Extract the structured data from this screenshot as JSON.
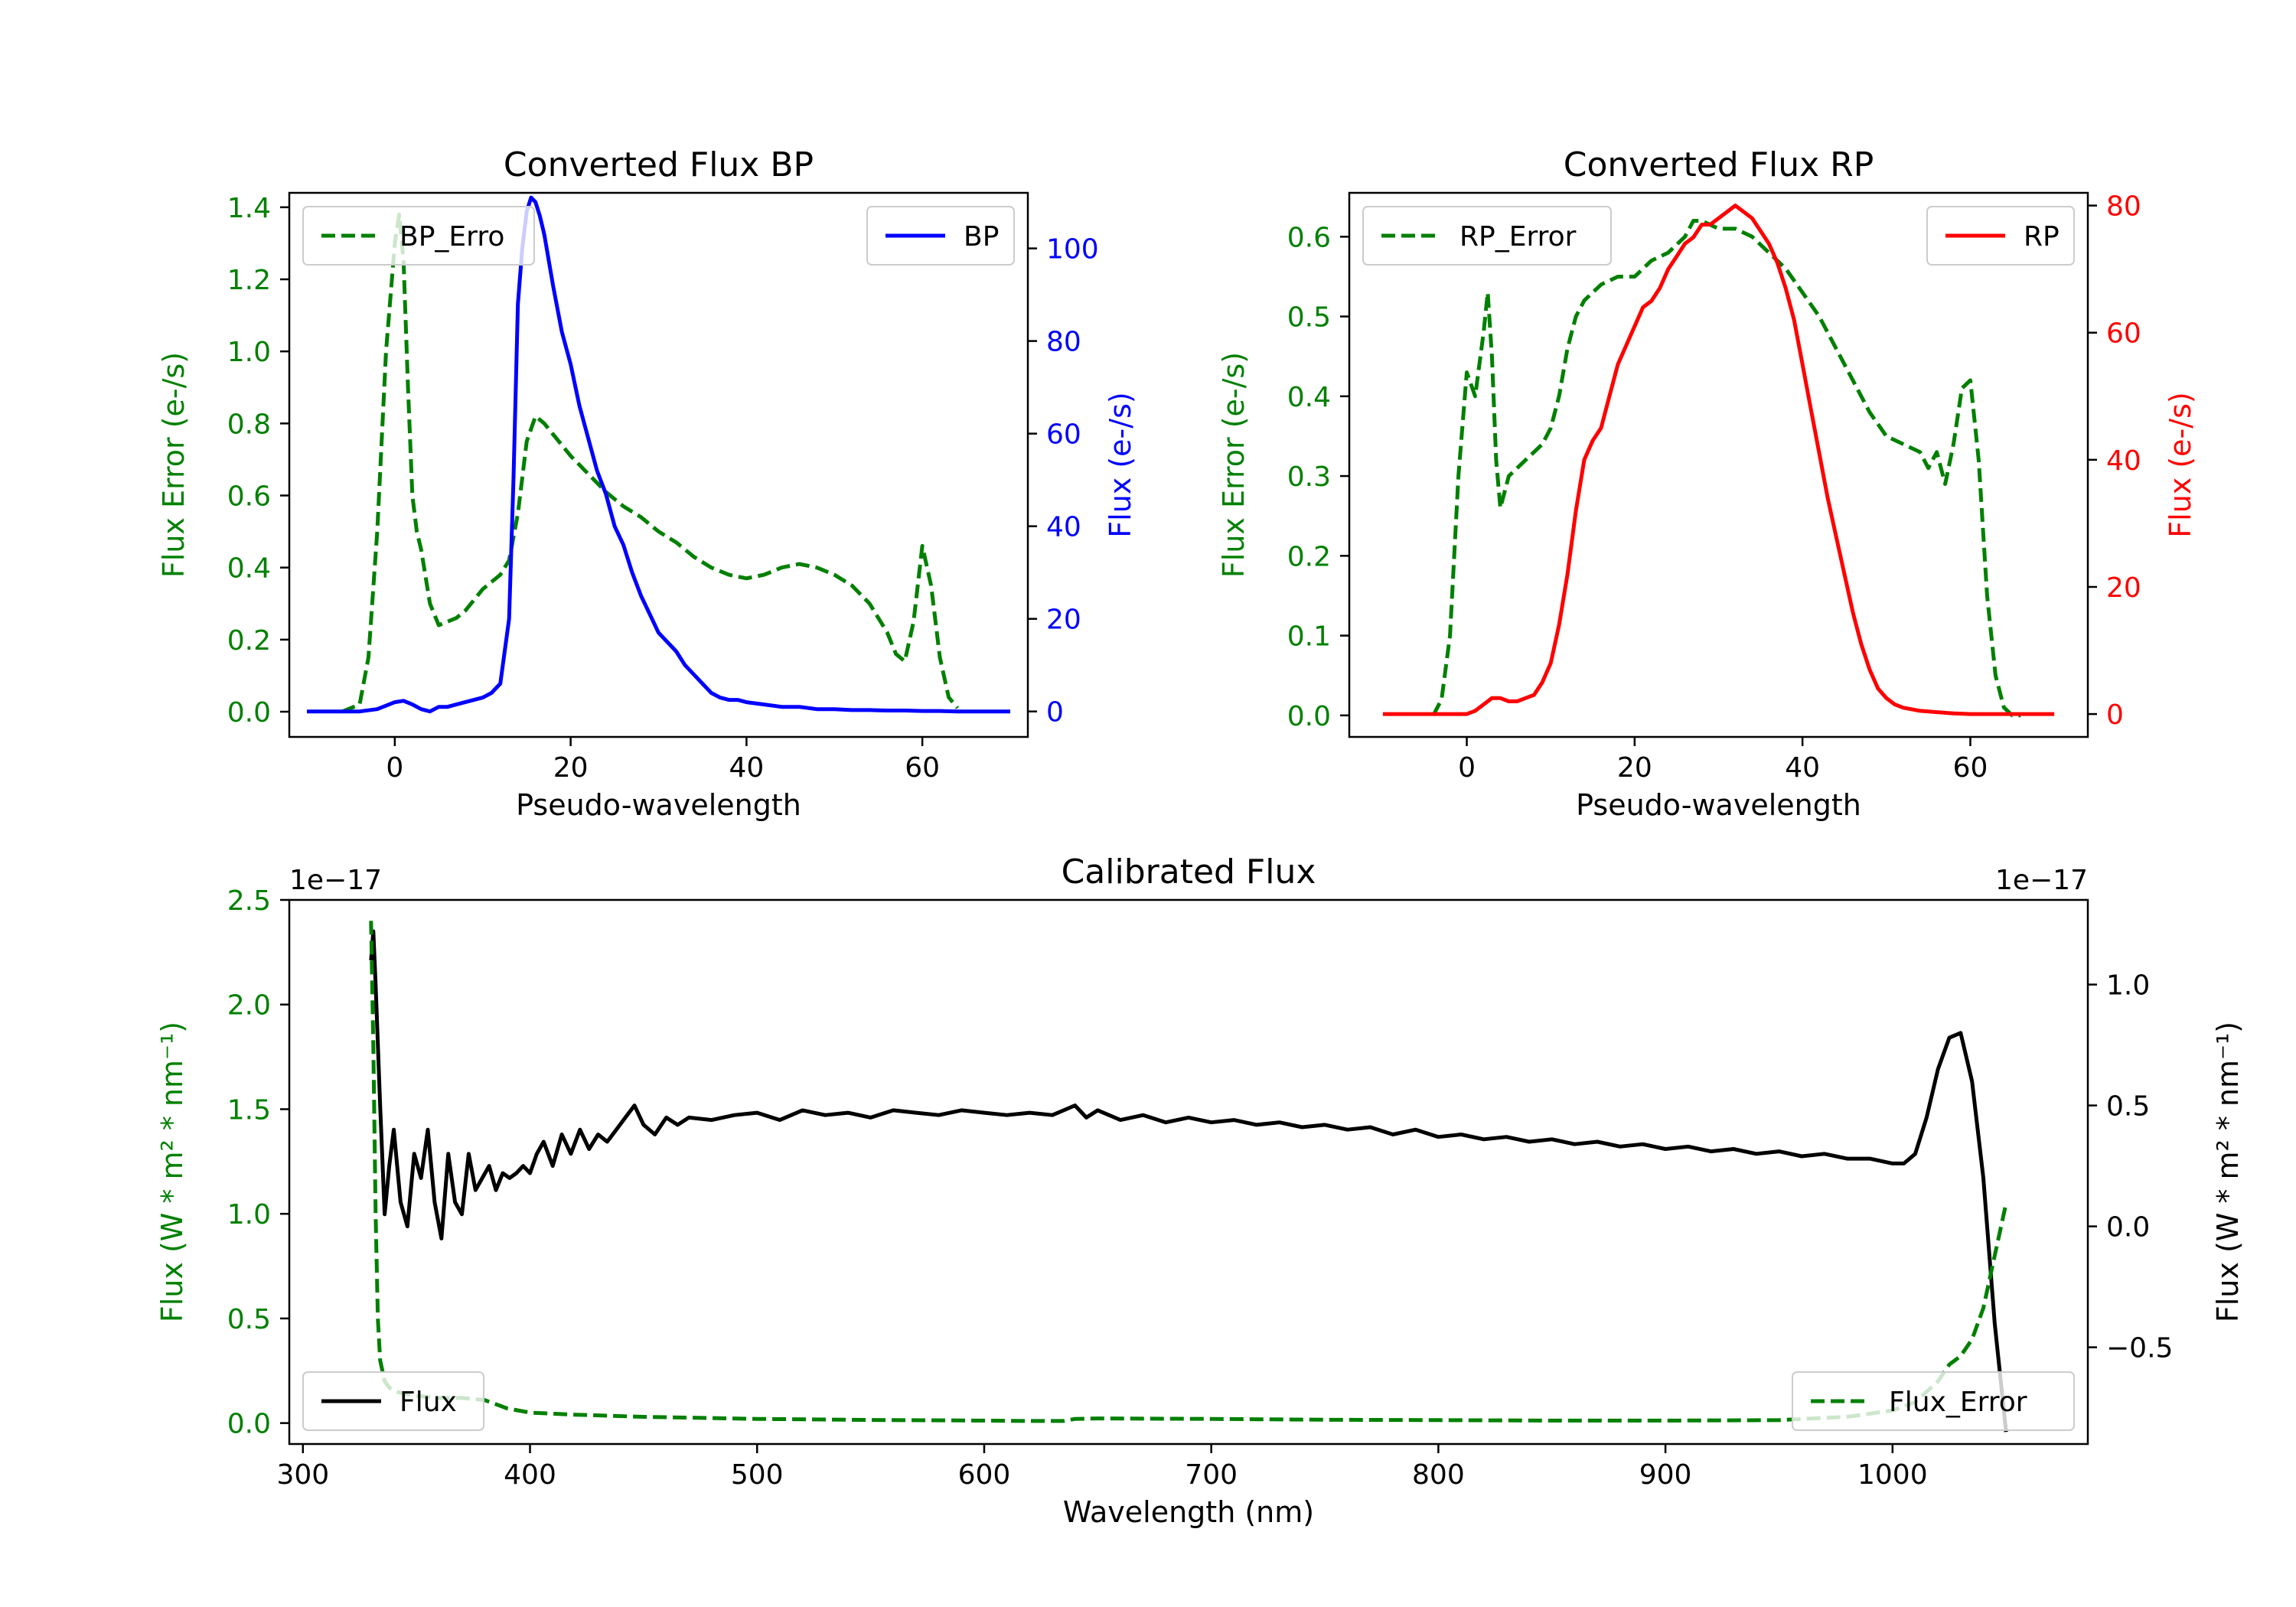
{
  "chart_data": [
    {
      "id": "bp",
      "type": "line",
      "title": "Converted Flux BP",
      "xlabel": "Pseudo-wavelength",
      "xlim": [
        -12,
        72
      ],
      "xticks": [
        0,
        20,
        40,
        60
      ],
      "xtick_labels": [
        "0",
        "20",
        "40",
        "60"
      ],
      "left_axis": {
        "label": "Flux Error (e-/s)",
        "color": "#008000",
        "lim": [
          -0.07,
          1.44
        ],
        "ticks": [
          0.0,
          0.2,
          0.4,
          0.6,
          0.8,
          1.0,
          1.2,
          1.4
        ],
        "tick_labels": [
          "0.0",
          "0.2",
          "0.4",
          "0.6",
          "0.8",
          "1.0",
          "1.2",
          "1.4"
        ]
      },
      "right_axis": {
        "label": "Flux (e-/s)",
        "color": "#0000ff",
        "lim": [
          -5.5,
          112
        ],
        "ticks": [
          0,
          20,
          40,
          60,
          80,
          100
        ],
        "tick_labels": [
          "0",
          "20",
          "40",
          "60",
          "80",
          "100"
        ]
      },
      "series": [
        {
          "name": "BP_Error",
          "axis": "left",
          "color": "#008000",
          "dashed": true,
          "legend_label": "BP_Erro",
          "x": [
            -6,
            -4,
            -3,
            -2,
            -1,
            0,
            0.5,
            1,
            1.5,
            2,
            2.5,
            3,
            4,
            5,
            6,
            7,
            8,
            9,
            10,
            11,
            12,
            13,
            14,
            15,
            16,
            17,
            18,
            19,
            20,
            22,
            24,
            26,
            28,
            30,
            32,
            34,
            36,
            38,
            40,
            42,
            44,
            46,
            48,
            50,
            52,
            54,
            56,
            57,
            58,
            59,
            60,
            61,
            62,
            63,
            64
          ],
          "y": [
            0.0,
            0.02,
            0.15,
            0.5,
            1.0,
            1.3,
            1.38,
            1.25,
            0.9,
            0.6,
            0.5,
            0.45,
            0.3,
            0.24,
            0.25,
            0.26,
            0.28,
            0.31,
            0.34,
            0.36,
            0.38,
            0.42,
            0.55,
            0.75,
            0.82,
            0.8,
            0.77,
            0.74,
            0.71,
            0.66,
            0.61,
            0.57,
            0.54,
            0.5,
            0.47,
            0.43,
            0.4,
            0.38,
            0.37,
            0.38,
            0.4,
            0.41,
            0.4,
            0.38,
            0.35,
            0.3,
            0.22,
            0.16,
            0.14,
            0.25,
            0.46,
            0.35,
            0.15,
            0.04,
            0.01
          ]
        },
        {
          "name": "BP",
          "axis": "right",
          "color": "#0000ff",
          "dashed": false,
          "legend_label": "BP",
          "x": [
            -10,
            -8,
            -4,
            -2,
            0,
            1,
            2,
            3,
            4,
            5,
            6,
            7,
            8,
            9,
            10,
            11,
            12,
            13,
            13.5,
            14,
            14.5,
            15,
            15.5,
            16,
            16.5,
            17,
            18,
            19,
            20,
            21,
            22,
            23,
            24,
            25,
            26,
            27,
            28,
            29,
            30,
            31,
            32,
            33,
            34,
            35,
            36,
            37,
            38,
            39,
            40,
            42,
            44,
            46,
            48,
            50,
            52,
            54,
            56,
            58,
            60,
            62,
            64,
            66,
            68,
            70
          ],
          "y": [
            0,
            0,
            0,
            0.5,
            2,
            2.3,
            1.5,
            0.5,
            0,
            1,
            1,
            1.5,
            2,
            2.5,
            3,
            4,
            6,
            20,
            50,
            88,
            100,
            108,
            111,
            110,
            107,
            103,
            92,
            82,
            75,
            66,
            59,
            52,
            47,
            40,
            36,
            30,
            25,
            21,
            17,
            15,
            13,
            10,
            8,
            6,
            4,
            3,
            2.5,
            2.5,
            2,
            1.5,
            1,
            1,
            0.5,
            0.5,
            0.3,
            0.3,
            0.2,
            0.2,
            0.1,
            0.1,
            0,
            0,
            0,
            0
          ]
        }
      ],
      "legends": [
        {
          "series": "BP_Error",
          "position": "upper left"
        },
        {
          "series": "BP",
          "position": "upper right"
        }
      ]
    },
    {
      "id": "rp",
      "type": "line",
      "title": "Converted Flux RP",
      "xlabel": "Pseudo-wavelength",
      "xlim": [
        -14,
        74
      ],
      "xticks": [
        0,
        20,
        40,
        60
      ],
      "xtick_labels": [
        "0",
        "20",
        "40",
        "60"
      ],
      "left_axis": {
        "label": "Flux Error (e-/s)",
        "color": "#008000",
        "lim": [
          -0.027,
          0.655
        ],
        "ticks": [
          0.0,
          0.1,
          0.2,
          0.3,
          0.4,
          0.5,
          0.6
        ],
        "tick_labels": [
          "0.0",
          "0.1",
          "0.2",
          "0.3",
          "0.4",
          "0.5",
          "0.6"
        ]
      },
      "right_axis": {
        "label": "Flux (e-/s)",
        "color": "#ff0000",
        "lim": [
          -3.6,
          82
        ],
        "ticks": [
          0,
          20,
          40,
          60,
          80
        ],
        "tick_labels": [
          "0",
          "20",
          "40",
          "60",
          "80"
        ]
      },
      "series": [
        {
          "name": "RP_Error",
          "axis": "left",
          "color": "#008000",
          "dashed": true,
          "legend_label": "RP_Error",
          "x": [
            -4,
            -3,
            -2,
            -1,
            0,
            1,
            2,
            2.5,
            3,
            3.5,
            4,
            5,
            6,
            7,
            8,
            9,
            10,
            11,
            12,
            13,
            14,
            16,
            18,
            20,
            22,
            24,
            26,
            27,
            28,
            30,
            32,
            34,
            36,
            38,
            40,
            42,
            44,
            46,
            48,
            50,
            52,
            54,
            55,
            56,
            57,
            58,
            59,
            60,
            61,
            62,
            63,
            64,
            65,
            66
          ],
          "y": [
            0.0,
            0.02,
            0.1,
            0.3,
            0.43,
            0.4,
            0.48,
            0.53,
            0.45,
            0.32,
            0.26,
            0.3,
            0.31,
            0.32,
            0.33,
            0.34,
            0.36,
            0.4,
            0.46,
            0.5,
            0.52,
            0.54,
            0.55,
            0.55,
            0.57,
            0.58,
            0.6,
            0.62,
            0.62,
            0.61,
            0.61,
            0.6,
            0.58,
            0.56,
            0.53,
            0.5,
            0.46,
            0.42,
            0.38,
            0.35,
            0.34,
            0.33,
            0.31,
            0.33,
            0.29,
            0.34,
            0.41,
            0.42,
            0.32,
            0.15,
            0.05,
            0.01,
            0.0,
            0.0
          ]
        },
        {
          "name": "RP",
          "axis": "right",
          "color": "#ff0000",
          "dashed": false,
          "legend_label": "RP",
          "x": [
            -10,
            -6,
            -2,
            0,
            1,
            2,
            3,
            4,
            5,
            6,
            7,
            8,
            9,
            10,
            11,
            12,
            13,
            14,
            15,
            16,
            17,
            18,
            19,
            20,
            21,
            22,
            23,
            24,
            25,
            26,
            27,
            28,
            29,
            30,
            31,
            32,
            33,
            34,
            35,
            36,
            37,
            38,
            39,
            40,
            41,
            42,
            43,
            44,
            45,
            46,
            47,
            48,
            49,
            50,
            51,
            52,
            54,
            56,
            58,
            60,
            62,
            64,
            66,
            68,
            70
          ],
          "y": [
            0,
            0,
            0,
            0,
            0.5,
            1.5,
            2.5,
            2.5,
            2,
            2,
            2.5,
            3,
            5,
            8,
            14,
            22,
            32,
            40,
            43,
            45,
            50,
            55,
            58,
            61,
            64,
            65,
            67,
            70,
            72,
            74,
            75,
            77,
            77,
            78,
            79,
            80,
            79,
            78,
            76,
            74,
            71,
            67,
            62,
            55,
            48,
            41,
            34,
            28,
            22,
            16,
            11,
            7,
            4,
            2.5,
            1.5,
            1,
            0.5,
            0.3,
            0.1,
            0,
            0,
            0,
            0,
            0,
            0
          ]
        }
      ],
      "legends": [
        {
          "series": "RP_Error",
          "position": "upper left"
        },
        {
          "series": "RP",
          "position": "upper right"
        }
      ]
    },
    {
      "id": "cal",
      "type": "line",
      "title": "Calibrated Flux",
      "xlabel": "Wavelength (nm)",
      "xlim": [
        294,
        1086
      ],
      "xticks": [
        300,
        400,
        500,
        600,
        700,
        800,
        900,
        1000
      ],
      "xtick_labels": [
        "300",
        "400",
        "500",
        "600",
        "700",
        "800",
        "900",
        "1000"
      ],
      "left_axis": {
        "label": "Flux (W * m<sup>2</sup> * nm<sup>-1</sup>)",
        "label_text": "Flux (W * m² * nm⁻¹)",
        "color": "#008000",
        "lim": [
          -0.1,
          2.5
        ],
        "offset_text": "1e−17",
        "ticks": [
          0.0,
          0.5,
          1.0,
          1.5,
          2.0,
          2.5
        ],
        "tick_labels": [
          "0.0",
          "0.5",
          "1.0",
          "1.5",
          "2.0",
          "2.5"
        ]
      },
      "right_axis": {
        "label_text": "Flux (W * m² * nm⁻¹)",
        "color": "#000000",
        "lim": [
          -0.9,
          1.35
        ],
        "offset_text": "1e−17",
        "ticks": [
          -0.5,
          0.0,
          0.5,
          1.0
        ],
        "tick_labels": [
          "−0.5",
          "0.0",
          "0.5",
          "1.0"
        ]
      },
      "series": [
        {
          "name": "Flux",
          "axis": "right",
          "color": "#000000",
          "dashed": false,
          "legend_label": "Flux",
          "x": [
            330,
            331,
            332,
            334,
            336,
            338,
            340,
            343,
            346,
            349,
            352,
            355,
            358,
            361,
            364,
            367,
            370,
            373,
            376,
            379,
            382,
            385,
            388,
            391,
            394,
            397,
            400,
            403,
            406,
            410,
            414,
            418,
            422,
            426,
            430,
            434,
            438,
            442,
            446,
            450,
            455,
            460,
            465,
            470,
            480,
            490,
            500,
            510,
            520,
            530,
            540,
            550,
            560,
            570,
            580,
            590,
            600,
            610,
            620,
            630,
            640,
            645,
            650,
            660,
            670,
            680,
            690,
            700,
            710,
            720,
            730,
            740,
            750,
            760,
            770,
            780,
            790,
            800,
            810,
            820,
            830,
            840,
            850,
            860,
            870,
            880,
            890,
            900,
            910,
            920,
            930,
            940,
            950,
            960,
            970,
            980,
            990,
            1000,
            1005,
            1010,
            1015,
            1020,
            1025,
            1030,
            1035,
            1040,
            1045,
            1050
          ],
          "y": [
            1.1,
            1.22,
            1.0,
            0.5,
            0.05,
            0.25,
            0.4,
            0.1,
            0.0,
            0.3,
            0.2,
            0.4,
            0.1,
            -0.05,
            0.3,
            0.1,
            0.05,
            0.3,
            0.15,
            0.2,
            0.25,
            0.15,
            0.22,
            0.2,
            0.22,
            0.25,
            0.22,
            0.3,
            0.35,
            0.25,
            0.38,
            0.3,
            0.4,
            0.32,
            0.38,
            0.35,
            0.4,
            0.45,
            0.5,
            0.42,
            0.38,
            0.45,
            0.42,
            0.45,
            0.44,
            0.46,
            0.47,
            0.44,
            0.48,
            0.46,
            0.47,
            0.45,
            0.48,
            0.47,
            0.46,
            0.48,
            0.47,
            0.46,
            0.47,
            0.46,
            0.5,
            0.45,
            0.48,
            0.44,
            0.46,
            0.43,
            0.45,
            0.43,
            0.44,
            0.42,
            0.43,
            0.41,
            0.42,
            0.4,
            0.41,
            0.38,
            0.4,
            0.37,
            0.38,
            0.36,
            0.37,
            0.35,
            0.36,
            0.34,
            0.35,
            0.33,
            0.34,
            0.32,
            0.33,
            0.31,
            0.32,
            0.3,
            0.31,
            0.29,
            0.3,
            0.28,
            0.28,
            0.26,
            0.26,
            0.3,
            0.45,
            0.65,
            0.78,
            0.8,
            0.6,
            0.2,
            -0.4,
            -0.85
          ]
        },
        {
          "name": "Flux_Error",
          "axis": "left",
          "color": "#008000",
          "dashed": true,
          "legend_label": "Flux_Error",
          "x": [
            330,
            331,
            332,
            333,
            334,
            336,
            338,
            341,
            345,
            350,
            360,
            370,
            380,
            390,
            400,
            420,
            450,
            500,
            550,
            600,
            620,
            635,
            640,
            650,
            700,
            750,
            800,
            850,
            900,
            950,
            980,
            1000,
            1010,
            1020,
            1025,
            1030,
            1035,
            1040,
            1045,
            1050
          ],
          "y": [
            2.4,
            1.8,
            1.0,
            0.5,
            0.3,
            0.2,
            0.17,
            0.15,
            0.14,
            0.13,
            0.12,
            0.12,
            0.11,
            0.07,
            0.05,
            0.04,
            0.03,
            0.02,
            0.015,
            0.012,
            0.01,
            0.01,
            0.02,
            0.022,
            0.02,
            0.016,
            0.014,
            0.012,
            0.012,
            0.014,
            0.03,
            0.06,
            0.1,
            0.2,
            0.28,
            0.32,
            0.4,
            0.55,
            0.8,
            1.05
          ]
        }
      ],
      "legends": [
        {
          "series": "Flux",
          "position": "lower left"
        },
        {
          "series": "Flux_Error",
          "position": "lower right"
        }
      ]
    }
  ]
}
